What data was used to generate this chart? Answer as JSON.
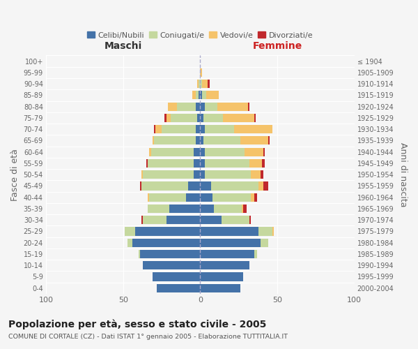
{
  "age_groups": [
    "0-4",
    "5-9",
    "10-14",
    "15-19",
    "20-24",
    "25-29",
    "30-34",
    "35-39",
    "40-44",
    "45-49",
    "50-54",
    "55-59",
    "60-64",
    "65-69",
    "70-74",
    "75-79",
    "80-84",
    "85-89",
    "90-94",
    "95-99",
    "100+"
  ],
  "birth_years": [
    "2000-2004",
    "1995-1999",
    "1990-1994",
    "1985-1989",
    "1980-1984",
    "1975-1979",
    "1970-1974",
    "1965-1969",
    "1960-1964",
    "1955-1959",
    "1950-1954",
    "1945-1949",
    "1940-1944",
    "1935-1939",
    "1930-1934",
    "1925-1929",
    "1920-1924",
    "1915-1919",
    "1910-1914",
    "1905-1909",
    "≤ 1904"
  ],
  "males": {
    "celibi": [
      28,
      31,
      37,
      39,
      44,
      42,
      22,
      20,
      9,
      8,
      4,
      4,
      4,
      3,
      3,
      2,
      3,
      1,
      0,
      0,
      0
    ],
    "coniugati": [
      0,
      0,
      0,
      1,
      3,
      7,
      15,
      14,
      24,
      30,
      33,
      30,
      28,
      27,
      22,
      17,
      12,
      2,
      1,
      0,
      0
    ],
    "vedovi": [
      0,
      0,
      0,
      0,
      0,
      0,
      0,
      0,
      1,
      0,
      1,
      0,
      1,
      1,
      4,
      3,
      6,
      2,
      1,
      0,
      0
    ],
    "divorziati": [
      0,
      0,
      0,
      0,
      0,
      0,
      1,
      0,
      0,
      1,
      0,
      1,
      0,
      0,
      1,
      1,
      0,
      0,
      0,
      0,
      0
    ]
  },
  "females": {
    "nubili": [
      26,
      28,
      32,
      35,
      39,
      38,
      14,
      9,
      8,
      7,
      3,
      3,
      3,
      2,
      3,
      2,
      3,
      1,
      0,
      0,
      0
    ],
    "coniugate": [
      0,
      0,
      0,
      2,
      5,
      9,
      18,
      18,
      25,
      31,
      30,
      29,
      26,
      24,
      19,
      13,
      8,
      3,
      1,
      0,
      0
    ],
    "vedove": [
      0,
      0,
      0,
      0,
      0,
      1,
      0,
      1,
      2,
      3,
      6,
      8,
      12,
      18,
      25,
      20,
      20,
      8,
      4,
      1,
      0
    ],
    "divorziate": [
      0,
      0,
      0,
      0,
      0,
      0,
      1,
      2,
      2,
      3,
      2,
      2,
      1,
      1,
      0,
      1,
      1,
      0,
      1,
      0,
      0
    ]
  },
  "colors": {
    "celibi": "#4472a8",
    "coniugati": "#c5d89e",
    "vedovi": "#f5c36a",
    "divorziati": "#c0282c"
  },
  "title": "Popolazione per età, sesso e stato civile - 2005",
  "subtitle": "COMUNE DI CORTALE (CZ) - Dati ISTAT 1° gennaio 2005 - Elaborazione TUTTITALIA.IT",
  "xlabel_left": "Maschi",
  "xlabel_right": "Femmine",
  "ylabel_left": "Fasce di età",
  "ylabel_right": "Anni di nascita",
  "legend_labels": [
    "Celibi/Nubili",
    "Coniugati/e",
    "Vedovi/e",
    "Divorziati/e"
  ],
  "xlim": 100,
  "background_color": "#f5f5f5"
}
